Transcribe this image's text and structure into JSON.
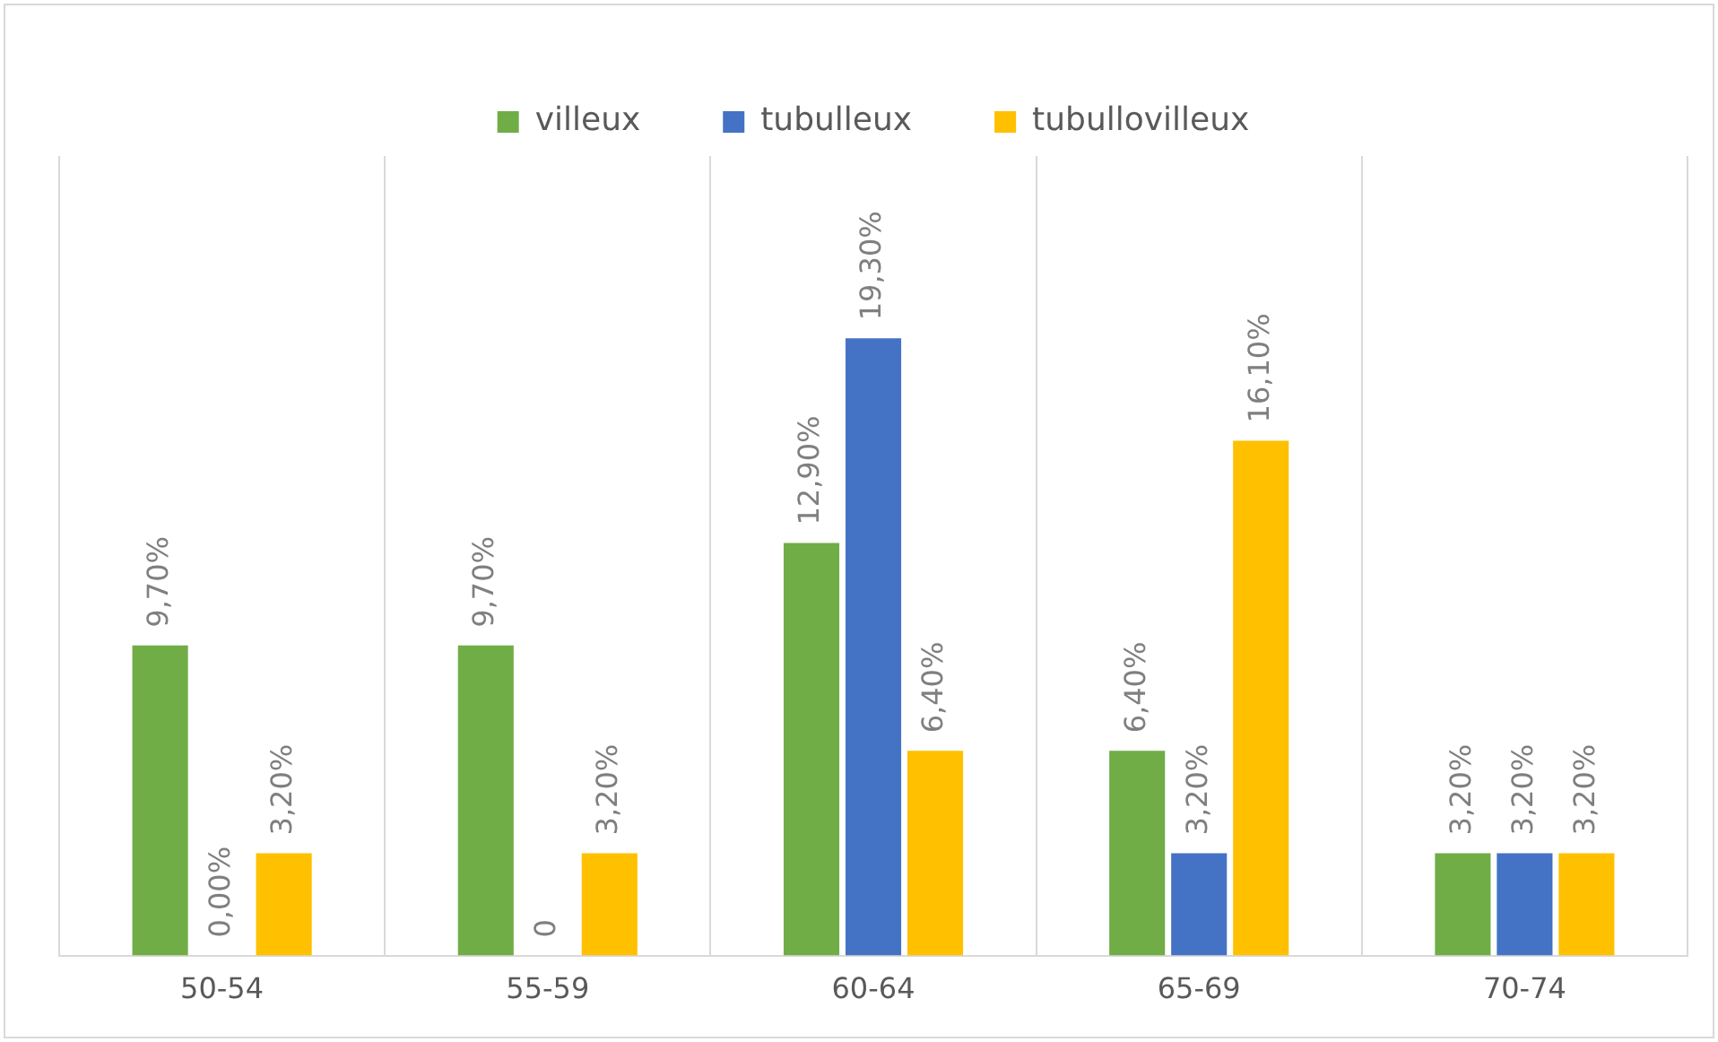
{
  "chart_data": {
    "type": "bar",
    "categories": [
      "50-54",
      "55-59",
      "60-64",
      "65-69",
      "70-74"
    ],
    "series": [
      {
        "name": "villeux",
        "color": "#70ad47",
        "values": [
          9.7,
          9.7,
          12.9,
          6.4,
          3.2
        ],
        "value_labels": [
          "9,70%",
          "9,70%",
          "12,90%",
          "6,40%",
          "3,20%"
        ]
      },
      {
        "name": "tubulleux",
        "color": "#4472c4",
        "values": [
          0,
          0,
          19.3,
          3.2,
          3.2
        ],
        "value_labels": [
          "0,00%",
          "0",
          "19,30%",
          "3,20%",
          "3,20%"
        ]
      },
      {
        "name": "tubullovilleux",
        "color": "#ffc000",
        "values": [
          3.2,
          3.2,
          6.4,
          16.1,
          3.2
        ],
        "value_labels": [
          "3,20%",
          "3,20%",
          "6,40%",
          "16,10%",
          "3,20%"
        ]
      }
    ],
    "grid": "x",
    "legend": "top",
    "tick_labels": "x"
  }
}
